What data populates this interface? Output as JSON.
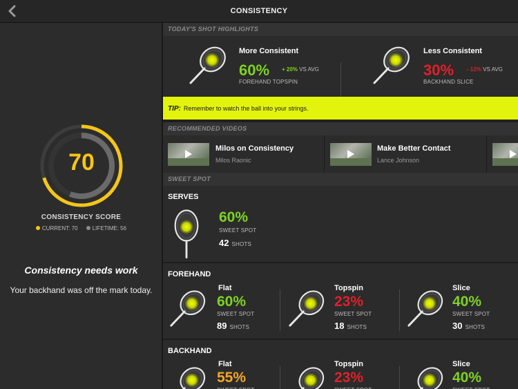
{
  "header": {
    "title": "CONSISTENCY"
  },
  "colors": {
    "green": "#7ed321",
    "red": "#e0202a",
    "orange": "#f5a623",
    "yellow": "#f5c518",
    "gray": "#8c8c8c",
    "tip_bg": "#e2f40c"
  },
  "score": {
    "value": "70",
    "current": 70,
    "lifetime": 56,
    "label": "CONSISTENCY SCORE",
    "current_label": "CURRENT: 70",
    "lifetime_label": "LIFETIME: 56"
  },
  "message": {
    "title": "Consistency needs work",
    "body": "Your backhand was off the mark today."
  },
  "highlights": {
    "section_title": "TODAY'S SHOT HIGHLIGHTS",
    "more": {
      "title": "More Consistent",
      "percent": "60%",
      "delta": "+ 20%",
      "delta_suffix": "VS AVG",
      "shot": "FOREHAND TOPSPIN"
    },
    "less": {
      "title": "Less Consistent",
      "percent": "30%",
      "delta": "- 12%",
      "delta_suffix": "VS AVG",
      "shot": "BACKHAND SLICE"
    }
  },
  "tip": {
    "label": "TIP:",
    "text": "Remember to watch the ball into your strings."
  },
  "videos": {
    "section_title": "RECOMMENDED VIDEOS",
    "items": [
      {
        "title": "Milos on Consistency",
        "author": "Milos Raonic"
      },
      {
        "title": "Make Better Contact",
        "author": "Lance Johnson"
      }
    ]
  },
  "sweet_spot": {
    "section_title": "SWEET SPOT",
    "sweet_spot_label": "SWEET SPOT",
    "shots_label": "SHOTS",
    "serves": {
      "title": "SERVES",
      "percent": "60%",
      "shots": "42"
    },
    "forehand": {
      "title": "FOREHAND",
      "items": [
        {
          "name": "Flat",
          "percent": "60%",
          "shots": "89"
        },
        {
          "name": "Topspin",
          "percent": "23%",
          "shots": "18"
        },
        {
          "name": "Slice",
          "percent": "40%",
          "shots": "30"
        }
      ]
    },
    "backhand": {
      "title": "BACKHAND",
      "items": [
        {
          "name": "Flat",
          "percent": "55%"
        },
        {
          "name": "Topspin",
          "percent": "23%"
        },
        {
          "name": "Slice",
          "percent": "40%"
        }
      ]
    }
  }
}
